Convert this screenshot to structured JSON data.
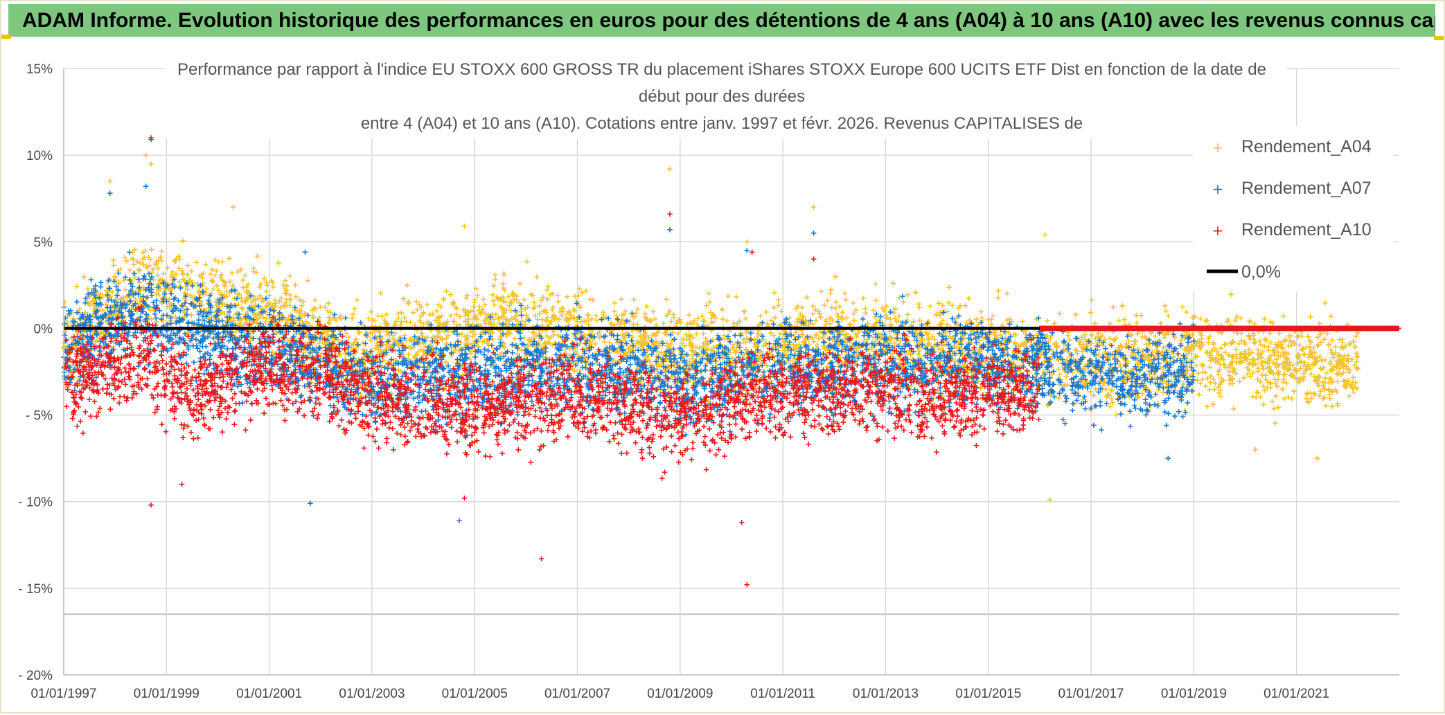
{
  "banner": {
    "title": "ADAM Informe. Evolution historique des performances en euros pour des détentions de 4 ans (A04) à 10 ans (A10) avec les revenus connus capitalisés"
  },
  "colors": {
    "banner_bg": "#7dc77e",
    "A04": "#f2c232",
    "A07": "#1f77c8",
    "A10": "#e41a1c",
    "zero_line": "#000000",
    "grid": "#d9d9d9"
  },
  "chart_data": {
    "type": "scatter",
    "title_lines": [
      "Performance par rapport à l'indice EU STOXX 600 GROSS TR  du placement iShares STOXX Europe 600 UCITS ETF Dist en fonction de la date de",
      "début pour des durées",
      "entre 4 (A04) et 10 ans (A10). Cotations entre janv. 1997 et févr. 2026. Revenus CAPITALISES de"
    ],
    "xlabel": "",
    "ylabel": "",
    "x_tick_labels": [
      "01/01/1997",
      "01/01/1999",
      "01/01/2001",
      "01/01/2003",
      "01/01/2005",
      "01/01/2007",
      "01/01/2009",
      "01/01/2011",
      "01/01/2013",
      "01/01/2015",
      "01/01/2017",
      "01/01/2019",
      "01/01/2021"
    ],
    "x_range_years": [
      1997.0,
      2023.0
    ],
    "y_tick_labels": [
      "15%",
      "10%",
      "5%",
      "0%",
      "- 5%",
      "- 10%",
      "- 15%",
      "- 20%"
    ],
    "y_ticks": [
      15,
      10,
      5,
      0,
      -5,
      -10,
      -15,
      -20
    ],
    "ylim": [
      -20,
      15
    ],
    "legend": [
      "Rendement_A04",
      "Rendement_A07",
      "Rendement_A10",
      "0,0%"
    ],
    "legend_position": "top-right",
    "series": [
      {
        "name": "Rendement_A04",
        "x_range": [
          1997.0,
          2022.2
        ],
        "zero_after": null,
        "profile": [
          [
            1997.0,
            -1.0
          ],
          [
            1998.5,
            2.5
          ],
          [
            2000.0,
            1.5
          ],
          [
            2001.0,
            1.0
          ],
          [
            2002.5,
            -1.5
          ],
          [
            2004.0,
            -0.8
          ],
          [
            2005.5,
            0.5
          ],
          [
            2007.5,
            -0.5
          ],
          [
            2009.0,
            -1.5
          ],
          [
            2010.5,
            -1.2
          ],
          [
            2012.0,
            -0.3
          ],
          [
            2014.0,
            -1.0
          ],
          [
            2016.0,
            -1.5
          ],
          [
            2017.5,
            -2.0
          ],
          [
            2019.0,
            -1.5
          ],
          [
            2020.5,
            -1.8
          ],
          [
            2022.2,
            -2.2
          ]
        ],
        "spread": 2.2,
        "outliers": [
          [
            1997.9,
            8.5
          ],
          [
            1998.6,
            10.0
          ],
          [
            1998.7,
            9.5
          ],
          [
            2000.3,
            7.0
          ],
          [
            2004.8,
            5.9
          ],
          [
            2008.8,
            9.2
          ],
          [
            2010.3,
            5.0
          ],
          [
            2011.6,
            7.0
          ],
          [
            2016.1,
            5.4
          ],
          [
            2016.2,
            -9.9
          ],
          [
            2020.2,
            -7.0
          ],
          [
            2021.4,
            -7.5
          ]
        ]
      },
      {
        "name": "Rendement_A07",
        "x_range": [
          1997.0,
          2019.0
        ],
        "zero_after": null,
        "profile": [
          [
            1997.0,
            -1.0
          ],
          [
            1998.5,
            1.0
          ],
          [
            2000.0,
            -0.5
          ],
          [
            2001.5,
            -1.5
          ],
          [
            2003.0,
            -3.0
          ],
          [
            2005.0,
            -2.5
          ],
          [
            2007.0,
            -2.0
          ],
          [
            2009.0,
            -3.0
          ],
          [
            2010.5,
            -2.5
          ],
          [
            2012.0,
            -2.0
          ],
          [
            2014.0,
            -2.0
          ],
          [
            2016.0,
            -2.2
          ],
          [
            2017.5,
            -3.0
          ],
          [
            2019.0,
            -2.5
          ]
        ],
        "spread": 2.3,
        "outliers": [
          [
            1997.9,
            7.8
          ],
          [
            1998.6,
            8.2
          ],
          [
            1998.7,
            10.9
          ],
          [
            2001.7,
            4.4
          ],
          [
            2001.8,
            -10.1
          ],
          [
            2004.7,
            -11.1
          ],
          [
            2008.8,
            5.7
          ],
          [
            2010.3,
            4.5
          ],
          [
            2011.6,
            5.5
          ],
          [
            2018.5,
            -7.5
          ]
        ]
      },
      {
        "name": "Rendement_A10",
        "x_range": [
          1997.0,
          2016.0
        ],
        "zero_after": [
          2016.0,
          2023.0
        ],
        "profile": [
          [
            1997.0,
            -3.0
          ],
          [
            1998.5,
            -1.5
          ],
          [
            1999.5,
            -4.0
          ],
          [
            2000.5,
            -2.5
          ],
          [
            2001.5,
            -2.0
          ],
          [
            2003.0,
            -4.0
          ],
          [
            2005.0,
            -4.5
          ],
          [
            2007.0,
            -4.0
          ],
          [
            2009.0,
            -5.0
          ],
          [
            2010.5,
            -4.0
          ],
          [
            2012.0,
            -3.5
          ],
          [
            2014.0,
            -4.0
          ],
          [
            2016.0,
            -3.5
          ]
        ],
        "spread": 2.3,
        "outliers": [
          [
            1998.7,
            11.0
          ],
          [
            1998.7,
            -10.2
          ],
          [
            1999.3,
            -9.0
          ],
          [
            2004.8,
            -9.8
          ],
          [
            2006.3,
            -13.3
          ],
          [
            2008.8,
            6.6
          ],
          [
            2010.2,
            -11.2
          ],
          [
            2010.3,
            -14.8
          ],
          [
            2010.4,
            4.4
          ],
          [
            2011.6,
            4.0
          ]
        ]
      }
    ]
  }
}
